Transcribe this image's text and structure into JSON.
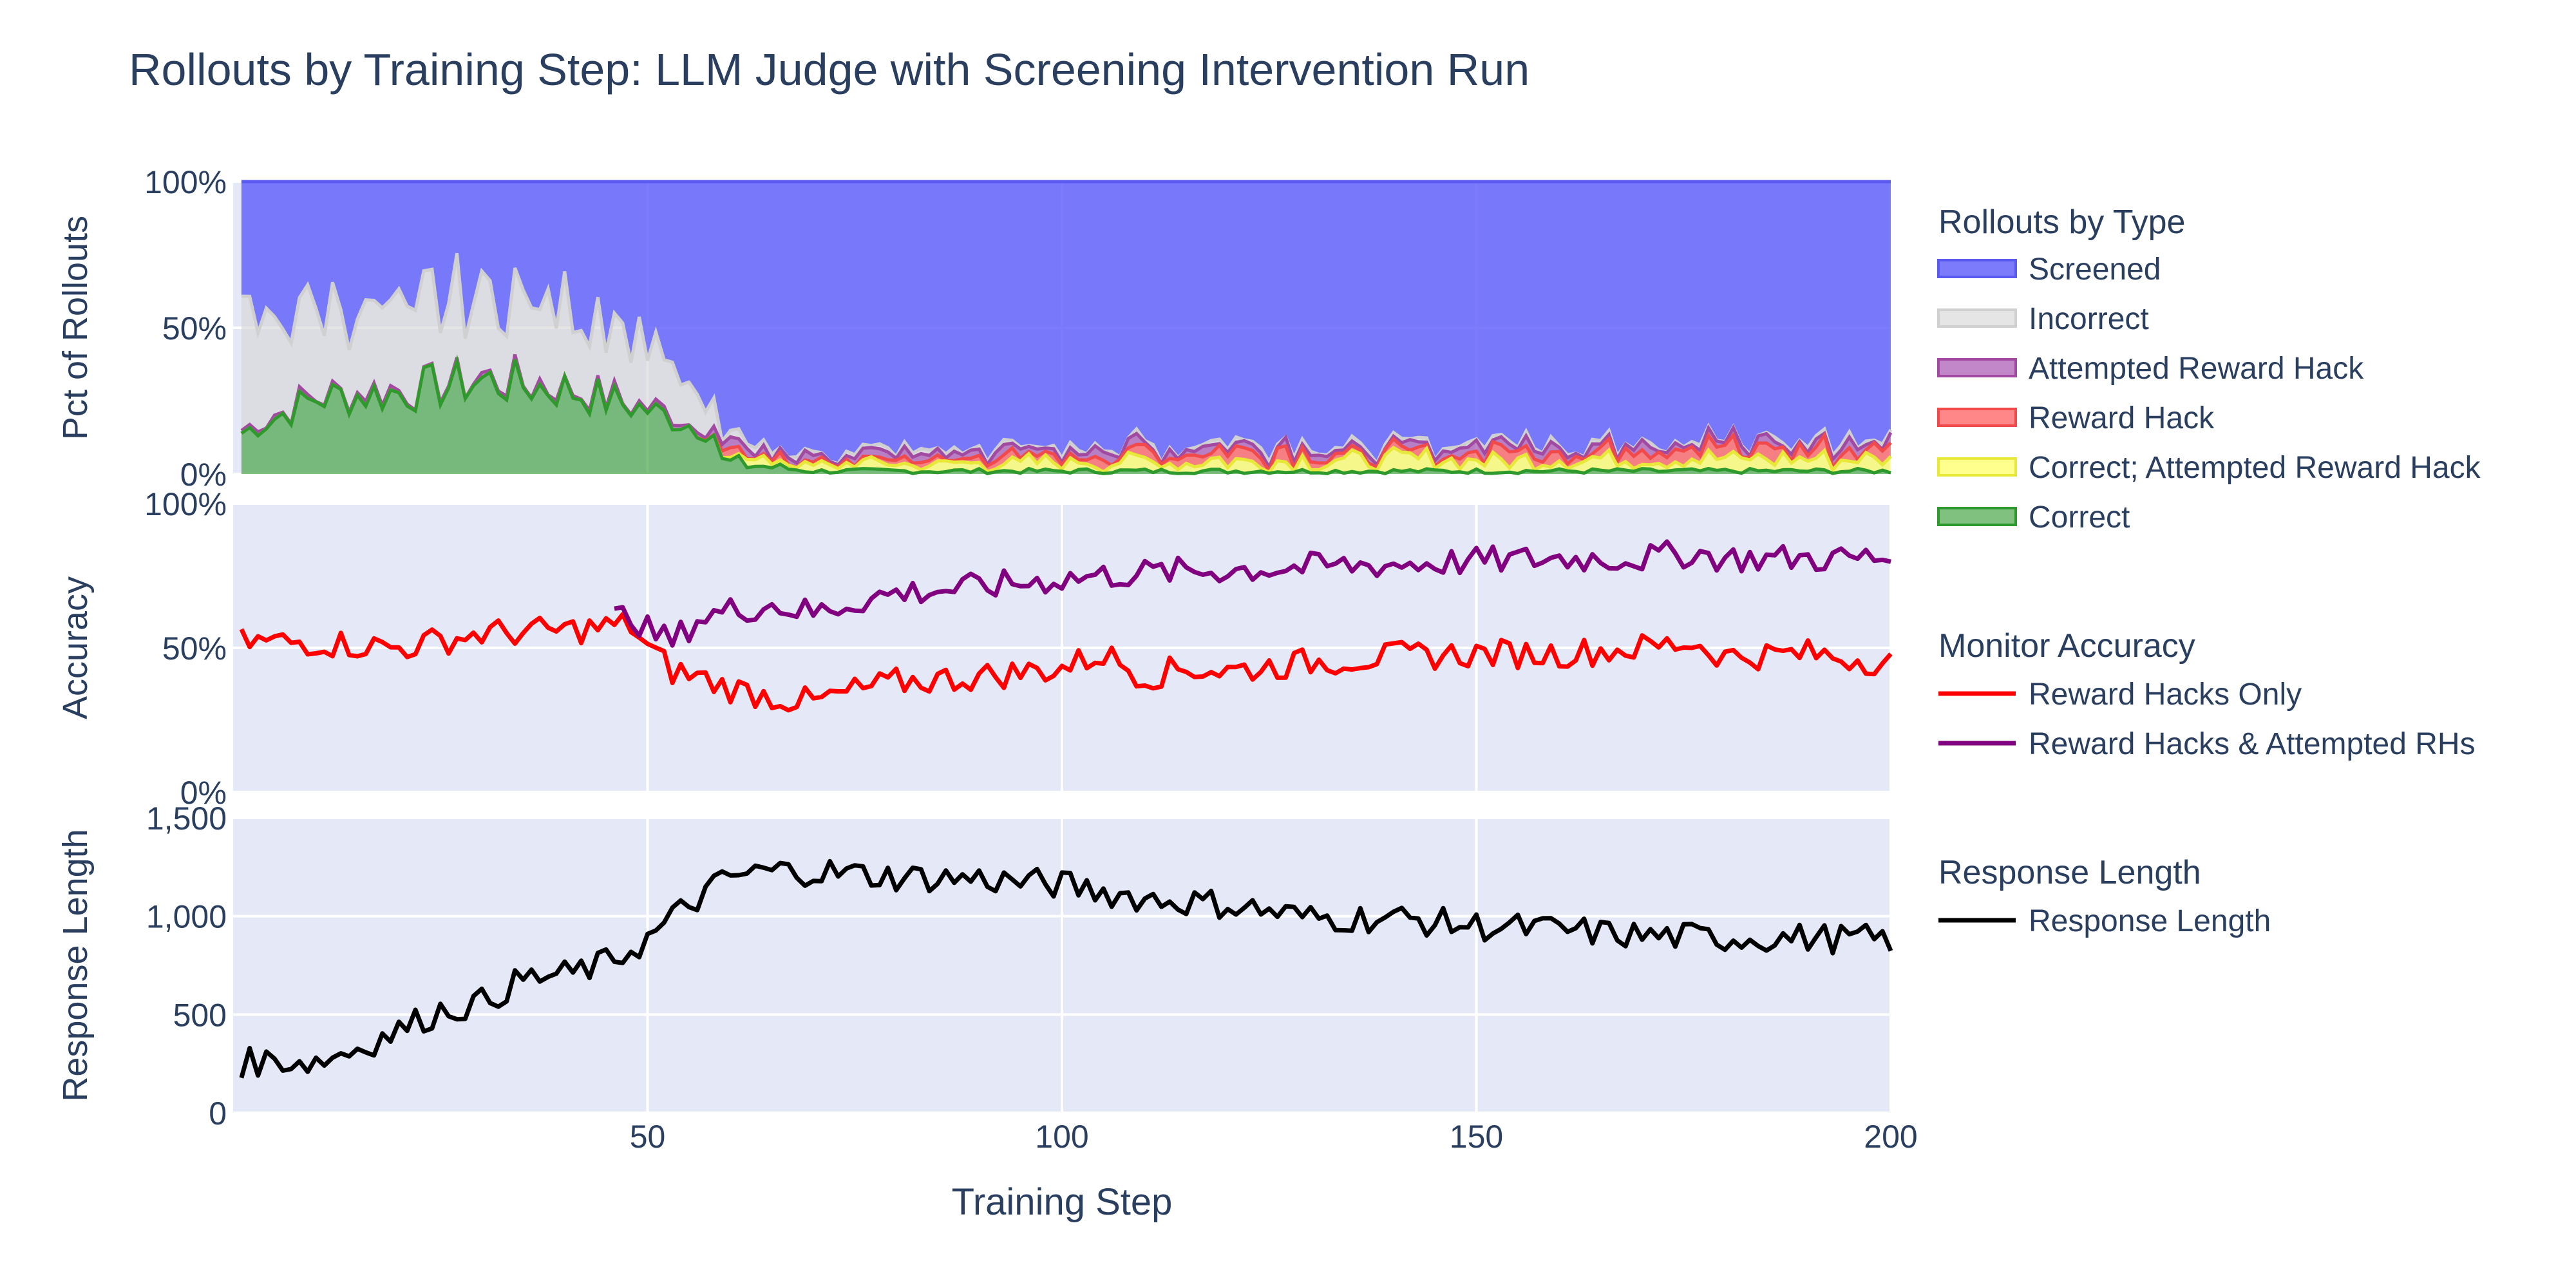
{
  "chart_data": {
    "type": "composite",
    "title": "Rollouts by Training Step: LLM Judge with Screening Intervention Run",
    "xlabel": "Training Step",
    "xlim": [
      0,
      200
    ],
    "x_ticks": [
      50,
      100,
      150,
      200
    ],
    "x_ticklabels": [
      "50",
      "100",
      "150",
      "200"
    ],
    "x_start": 1,
    "x_count": 200,
    "panels": [
      {
        "id": "rollouts",
        "type": "area",
        "ylabel": "Pct of Rollouts",
        "ylim": [
          0,
          100
        ],
        "y_ticks": [
          0,
          50,
          100
        ],
        "y_ticklabels": [
          "0%",
          "50%",
          "100%"
        ],
        "legend_title": "Rollouts by Type",
        "series": [
          {
            "name": "Correct",
            "color": "#2e9a2e",
            "fill": "rgba(60,160,60,0.65)",
            "stack": "correct"
          },
          {
            "name": "Correct; Attempted Reward Hack",
            "color": "#e8e838",
            "fill": "rgba(255,255,80,0.65)",
            "stack": "correct_attempted"
          },
          {
            "name": "Reward Hack",
            "color": "#f24a4a",
            "fill": "rgba(255,70,70,0.65)",
            "stack": "reward_hack"
          },
          {
            "name": "Attempted Reward Hack",
            "color": "#a24aa2",
            "fill": "rgba(160,70,170,0.65)",
            "stack": "attempted"
          },
          {
            "name": "Incorrect",
            "color": "#d0d0d0",
            "fill": "rgba(215,215,215,0.65)",
            "stack": "incorrect"
          },
          {
            "name": "Screened",
            "color": "#5a5af0",
            "fill": "rgba(100,100,250,0.85)",
            "stack": "screened"
          }
        ],
        "anchors": {
          "correct": [
            [
              1,
              14
            ],
            [
              10,
              26
            ],
            [
              20,
              28
            ],
            [
              30,
              32
            ],
            [
              40,
              29
            ],
            [
              50,
              22
            ],
            [
              55,
              17
            ],
            [
              58,
              14
            ],
            [
              59,
              4
            ],
            [
              70,
              1
            ],
            [
              90,
              1
            ],
            [
              120,
              1
            ],
            [
              200,
              1
            ]
          ],
          "correct_attempted": [
            [
              1,
              0
            ],
            [
              58,
              0
            ],
            [
              60,
              2
            ],
            [
              70,
              2
            ],
            [
              100,
              3
            ],
            [
              130,
              4
            ],
            [
              160,
              4
            ],
            [
              200,
              4
            ]
          ],
          "reward_hack": [
            [
              1,
              0
            ],
            [
              55,
              0
            ],
            [
              60,
              2
            ],
            [
              70,
              1
            ],
            [
              100,
              2
            ],
            [
              130,
              3
            ],
            [
              170,
              3
            ],
            [
              200,
              3
            ]
          ],
          "attempted": [
            [
              1,
              1
            ],
            [
              55,
              1
            ],
            [
              60,
              2
            ],
            [
              100,
              2
            ],
            [
              200,
              2
            ]
          ],
          "incorrect": [
            [
              1,
              38
            ],
            [
              10,
              30
            ],
            [
              20,
              28
            ],
            [
              30,
              28
            ],
            [
              40,
              29
            ],
            [
              50,
              23
            ],
            [
              55,
              13
            ],
            [
              58,
              6
            ],
            [
              59,
              2
            ],
            [
              70,
              1
            ],
            [
              200,
              1
            ]
          ]
        }
      },
      {
        "id": "accuracy",
        "type": "line",
        "ylabel": "Accuracy",
        "ylim": [
          0,
          100
        ],
        "y_ticks": [
          0,
          50,
          100
        ],
        "y_ticklabels": [
          "0%",
          "50%",
          "100%"
        ],
        "legend_title": "Monitor Accuracy",
        "series": [
          {
            "name": "Reward Hacks Only",
            "color": "#ff0000",
            "key": "rh_only",
            "anchors": [
              [
                1,
                52
              ],
              [
                10,
                52
              ],
              [
                20,
                50
              ],
              [
                30,
                55
              ],
              [
                40,
                56
              ],
              [
                48,
                58
              ],
              [
                50,
                50
              ],
              [
                53,
                42
              ],
              [
                56,
                40
              ],
              [
                60,
                36
              ],
              [
                65,
                33
              ],
              [
                70,
                31
              ],
              [
                75,
                35
              ],
              [
                80,
                38
              ],
              [
                90,
                40
              ],
              [
                100,
                43
              ],
              [
                105,
                48
              ],
              [
                110,
                40
              ],
              [
                115,
                43
              ],
              [
                120,
                42
              ],
              [
                130,
                45
              ],
              [
                140,
                47
              ],
              [
                150,
                48
              ],
              [
                160,
                48
              ],
              [
                170,
                50
              ],
              [
                176,
                52
              ],
              [
                180,
                47
              ],
              [
                190,
                48
              ],
              [
                200,
                45
              ]
            ]
          },
          {
            "name": "Reward Hacks & Attempted RHs",
            "color": "#800080",
            "key": "rh_attempted",
            "anchors": [
              [
                46,
                60
              ],
              [
                48,
                62
              ],
              [
                50,
                56
              ],
              [
                53,
                52
              ],
              [
                56,
                60
              ],
              [
                60,
                63
              ],
              [
                65,
                65
              ],
              [
                70,
                62
              ],
              [
                75,
                66
              ],
              [
                80,
                69
              ],
              [
                90,
                71
              ],
              [
                100,
                74
              ],
              [
                110,
                76
              ],
              [
                120,
                77
              ],
              [
                130,
                78
              ],
              [
                140,
                79
              ],
              [
                150,
                80
              ],
              [
                160,
                81
              ],
              [
                170,
                81
              ],
              [
                176,
                83
              ],
              [
                180,
                81
              ],
              [
                190,
                81
              ],
              [
                200,
                81
              ]
            ]
          }
        ]
      },
      {
        "id": "length",
        "type": "line",
        "ylabel": "Response Length",
        "ylim": [
          0,
          1500
        ],
        "y_ticks": [
          0,
          500,
          1000,
          1500
        ],
        "y_ticklabels": [
          "0",
          "500",
          "1,000",
          "1,500"
        ],
        "legend_title": "Response Length",
        "series": [
          {
            "name": "Response Length",
            "color": "#000000",
            "key": "length",
            "anchors": [
              [
                1,
                250
              ],
              [
                5,
                270
              ],
              [
                10,
                260
              ],
              [
                15,
                330
              ],
              [
                20,
                420
              ],
              [
                25,
                520
              ],
              [
                30,
                560
              ],
              [
                35,
                680
              ],
              [
                40,
                700
              ],
              [
                45,
                760
              ],
              [
                50,
                880
              ],
              [
                55,
                1060
              ],
              [
                60,
                1200
              ],
              [
                65,
                1230
              ],
              [
                70,
                1230
              ],
              [
                80,
                1200
              ],
              [
                90,
                1190
              ],
              [
                100,
                1160
              ],
              [
                110,
                1090
              ],
              [
                120,
                1060
              ],
              [
                130,
                990
              ],
              [
                140,
                990
              ],
              [
                150,
                950
              ],
              [
                160,
                930
              ],
              [
                170,
                900
              ],
              [
                180,
                890
              ],
              [
                190,
                890
              ],
              [
                200,
                880
              ]
            ]
          }
        ]
      }
    ]
  }
}
